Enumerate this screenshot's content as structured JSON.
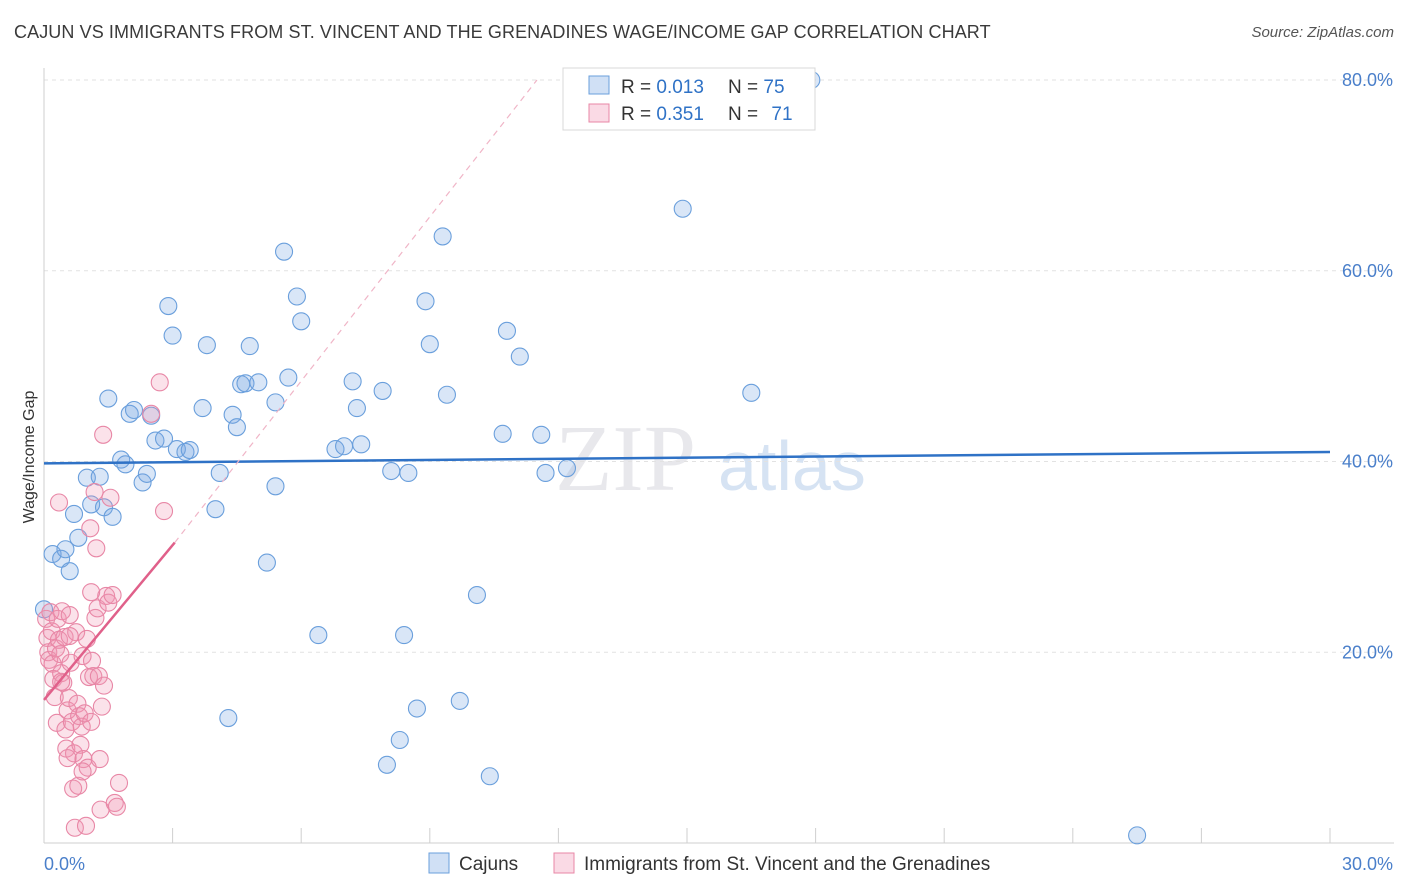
{
  "title": "CAJUN VS IMMIGRANTS FROM ST. VINCENT AND THE GRENADINES WAGE/INCOME GAP CORRELATION CHART",
  "source": "Source: ZipAtlas.com",
  "watermark": {
    "zip": "ZIP",
    "atlas": "atlas"
  },
  "chart_data": {
    "type": "scatter",
    "title": "CAJUN VS IMMIGRANTS FROM ST. VINCENT AND THE GRENADINES WAGE/INCOME GAP CORRELATION CHART",
    "xlabel": "",
    "ylabel": "Wage/Income Gap",
    "xlim": [
      0,
      30
    ],
    "ylim": [
      0,
      80
    ],
    "x_tick_labels": [
      "0.0%",
      "30.0%"
    ],
    "y_ticks": [
      20,
      40,
      60,
      80
    ],
    "y_tick_labels": [
      "20.0%",
      "40.0%",
      "60.0%",
      "80.0%"
    ],
    "grid": true,
    "legend_position": "top-center",
    "stats": [
      {
        "r_label": "R = ",
        "r_value": "0.013",
        "n_label": "N = ",
        "n_value": "75"
      },
      {
        "r_label": "R = ",
        "r_value": "0.351",
        "n_label": "N = ",
        "n_value": "71"
      }
    ],
    "series": [
      {
        "name": "Cajuns",
        "color": "#6a9fdc",
        "fill": "rgba(120,165,225,0.28)",
        "trend_color": "#2f72c6",
        "trend": {
          "x": [
            0,
            30
          ],
          "y": [
            39.8,
            41.0
          ]
        },
        "points": [
          [
            0.0,
            24.5
          ],
          [
            0.2,
            30.3
          ],
          [
            0.4,
            29.8
          ],
          [
            0.5,
            30.8
          ],
          [
            0.6,
            28.5
          ],
          [
            0.7,
            34.5
          ],
          [
            0.8,
            32.0
          ],
          [
            1.0,
            38.3
          ],
          [
            1.1,
            35.5
          ],
          [
            1.3,
            38.4
          ],
          [
            1.4,
            35.2
          ],
          [
            1.5,
            46.6
          ],
          [
            1.6,
            34.2
          ],
          [
            1.8,
            40.2
          ],
          [
            1.9,
            39.7
          ],
          [
            2.0,
            45.0
          ],
          [
            2.1,
            45.4
          ],
          [
            2.3,
            37.8
          ],
          [
            2.4,
            38.7
          ],
          [
            2.5,
            44.8
          ],
          [
            2.6,
            42.2
          ],
          [
            2.8,
            42.4
          ],
          [
            2.9,
            56.3
          ],
          [
            3.0,
            53.2
          ],
          [
            3.1,
            41.3
          ],
          [
            3.3,
            41.0
          ],
          [
            3.4,
            41.2
          ],
          [
            3.7,
            45.6
          ],
          [
            3.8,
            52.2
          ],
          [
            4.0,
            35.0
          ],
          [
            4.1,
            38.8
          ],
          [
            4.3,
            13.1
          ],
          [
            4.4,
            44.9
          ],
          [
            4.5,
            43.6
          ],
          [
            4.6,
            48.1
          ],
          [
            4.7,
            48.2
          ],
          [
            4.8,
            52.1
          ],
          [
            5.0,
            48.3
          ],
          [
            5.2,
            29.4
          ],
          [
            5.4,
            46.2
          ],
          [
            5.4,
            37.4
          ],
          [
            5.6,
            62.0
          ],
          [
            5.7,
            48.8
          ],
          [
            5.9,
            57.3
          ],
          [
            6.0,
            54.7
          ],
          [
            6.4,
            21.8
          ],
          [
            6.8,
            41.3
          ],
          [
            7.0,
            41.6
          ],
          [
            7.2,
            48.4
          ],
          [
            7.3,
            45.6
          ],
          [
            7.4,
            41.8
          ],
          [
            7.9,
            47.4
          ],
          [
            8.0,
            8.2
          ],
          [
            8.1,
            39.0
          ],
          [
            8.3,
            10.8
          ],
          [
            8.4,
            21.8
          ],
          [
            8.5,
            38.8
          ],
          [
            8.7,
            14.1
          ],
          [
            8.9,
            56.8
          ],
          [
            9.0,
            52.3
          ],
          [
            9.3,
            63.6
          ],
          [
            9.4,
            47.0
          ],
          [
            9.7,
            14.9
          ],
          [
            10.1,
            26.0
          ],
          [
            10.4,
            7.0
          ],
          [
            10.7,
            42.9
          ],
          [
            10.8,
            53.7
          ],
          [
            11.1,
            51.0
          ],
          [
            11.6,
            42.8
          ],
          [
            11.7,
            38.8
          ],
          [
            12.2,
            39.3
          ],
          [
            14.9,
            66.5
          ],
          [
            16.5,
            47.2
          ],
          [
            17.9,
            80.0
          ],
          [
            25.5,
            0.8
          ]
        ]
      },
      {
        "name": "Immigrants from St. Vincent and the Grenadines",
        "color": "#e887a6",
        "fill": "rgba(240,150,180,0.28)",
        "trend_color": "#e0608a",
        "trend": {
          "x": [
            0,
            3.05
          ],
          "y": [
            15.0,
            31.5
          ]
        },
        "trend_extension": {
          "x": [
            3.05,
            11.5
          ],
          "y": [
            31.5,
            80.0
          ]
        },
        "points": [
          [
            0.05,
            23.5
          ],
          [
            0.08,
            21.5
          ],
          [
            0.1,
            20.0
          ],
          [
            0.12,
            19.2
          ],
          [
            0.15,
            24.2
          ],
          [
            0.18,
            22.2
          ],
          [
            0.2,
            18.8
          ],
          [
            0.22,
            17.2
          ],
          [
            0.25,
            15.3
          ],
          [
            0.28,
            20.4
          ],
          [
            0.3,
            12.6
          ],
          [
            0.32,
            23.5
          ],
          [
            0.35,
            21.3
          ],
          [
            0.38,
            19.8
          ],
          [
            0.4,
            17.8
          ],
          [
            0.42,
            24.3
          ],
          [
            0.45,
            16.8
          ],
          [
            0.48,
            21.6
          ],
          [
            0.5,
            11.9
          ],
          [
            0.52,
            9.9
          ],
          [
            0.55,
            13.9
          ],
          [
            0.58,
            15.2
          ],
          [
            0.6,
            23.9
          ],
          [
            0.62,
            18.9
          ],
          [
            0.65,
            12.7
          ],
          [
            0.68,
            5.7
          ],
          [
            0.7,
            9.4
          ],
          [
            0.72,
            1.6
          ],
          [
            0.75,
            22.1
          ],
          [
            0.78,
            14.6
          ],
          [
            0.8,
            6.0
          ],
          [
            0.82,
            13.3
          ],
          [
            0.85,
            10.3
          ],
          [
            0.88,
            12.2
          ],
          [
            0.9,
            19.6
          ],
          [
            0.92,
            8.8
          ],
          [
            0.95,
            13.6
          ],
          [
            0.98,
            1.8
          ],
          [
            1.0,
            21.4
          ],
          [
            1.02,
            7.9
          ],
          [
            1.05,
            17.4
          ],
          [
            1.08,
            33.0
          ],
          [
            1.1,
            12.7
          ],
          [
            1.12,
            19.1
          ],
          [
            1.15,
            17.5
          ],
          [
            1.18,
            36.8
          ],
          [
            1.2,
            23.6
          ],
          [
            1.22,
            30.9
          ],
          [
            1.25,
            24.6
          ],
          [
            1.28,
            17.5
          ],
          [
            1.3,
            8.8
          ],
          [
            1.32,
            3.5
          ],
          [
            1.35,
            14.3
          ],
          [
            1.38,
            42.8
          ],
          [
            1.4,
            16.5
          ],
          [
            1.45,
            25.9
          ],
          [
            1.5,
            25.2
          ],
          [
            1.55,
            36.2
          ],
          [
            1.6,
            26.0
          ],
          [
            1.65,
            4.2
          ],
          [
            1.7,
            3.8
          ],
          [
            1.75,
            6.3
          ],
          [
            2.5,
            45.0
          ],
          [
            2.7,
            48.3
          ],
          [
            2.8,
            34.8
          ],
          [
            0.35,
            35.7
          ],
          [
            0.6,
            21.7
          ],
          [
            0.4,
            16.9
          ],
          [
            0.55,
            8.9
          ],
          [
            0.9,
            7.5
          ],
          [
            1.1,
            26.3
          ]
        ]
      }
    ]
  }
}
